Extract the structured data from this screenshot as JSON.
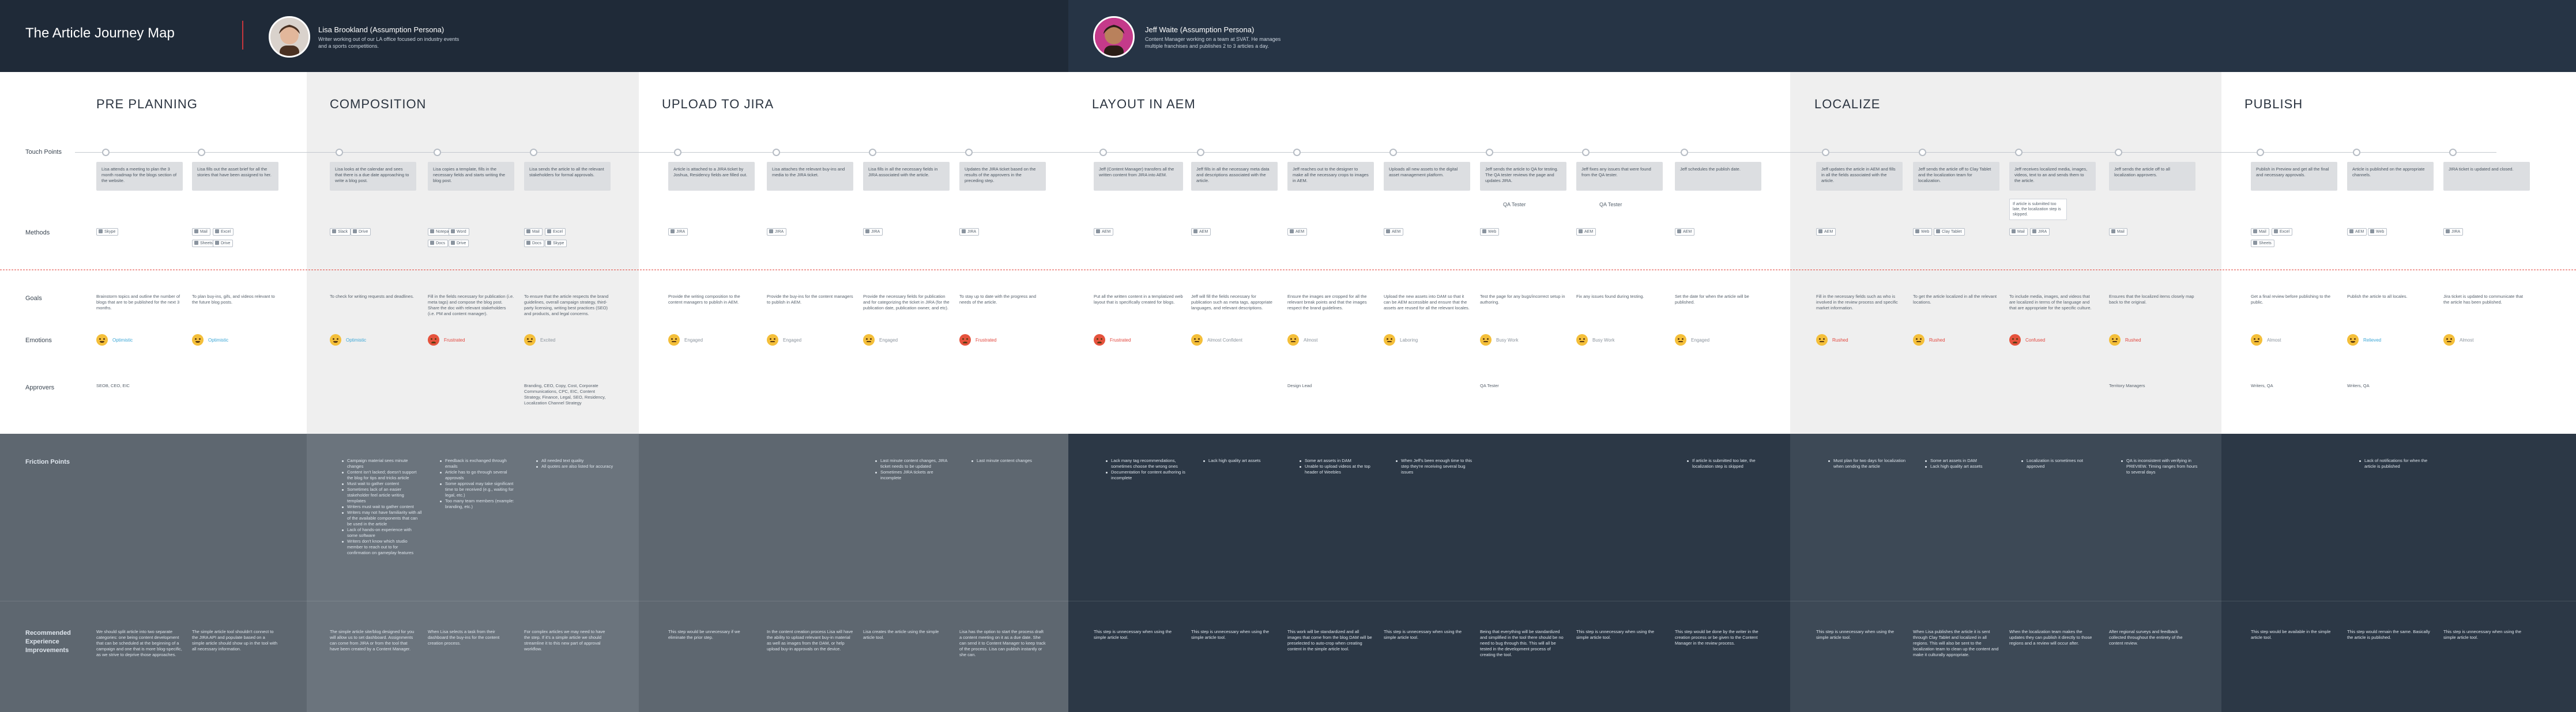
{
  "header": {
    "title": "The Article Journey Map",
    "personas": [
      {
        "name": "Lisa Brookland (Assumption Persona)",
        "desc_line1": "Writer working out of our LA office focused on industry events",
        "desc_line2": "and a sports competitions."
      },
      {
        "name": "Jeff Waite (Assumption Persona)",
        "desc_line1": "Content Manager working on a team at SVAT. He manages",
        "desc_line2": "multiple franchises and publishes 2 to 3 articles a day."
      }
    ]
  },
  "row_labels": {
    "touch_points": "Touch Points",
    "methods": "Methods",
    "goals": "Goals",
    "emotions": "Emotions",
    "approvers": "Approvers",
    "friction": "Friction Points",
    "rec_line1": "Recommended",
    "rec_line2": "Experience",
    "rec_line3": "Improvements"
  },
  "colors": {
    "header_dark": "#1f2a38",
    "shade_light": "#efefef",
    "friction_dark": "#5e6770",
    "accent_red": "#c8373d",
    "emotion_yellow": "#f4bf3a",
    "emotion_red": "#e5533d",
    "positive_text": "#3aa6d6",
    "negative_text": "#e2453c"
  },
  "phases": [
    {
      "title": "PRE PLANNING"
    },
    {
      "title": "COMPOSITION"
    },
    {
      "title": "UPLOAD TO JIRA"
    },
    {
      "title": "LAYOUT IN AEM"
    },
    {
      "title": "LOCALIZE"
    },
    {
      "title": "PUBLISH"
    }
  ],
  "steps": [
    {
      "touch": "Lisa attends a meeting to plan the 3 month roadmap for the blogs section of the website.",
      "methods": [
        "Skype"
      ],
      "goal": "Brainstorm topics and outline the number of blogs that are to be published for the next 3 months.",
      "emotion": {
        "icon": "happy",
        "label": "Optimistic"
      },
      "approver": "SEOB, CEO, EIC"
    },
    {
      "touch": "Lisa fills out the asset brief for all the stories that have been assigned to her.",
      "methods": [
        "Mail",
        "Excel",
        "Sheets",
        "Drive"
      ],
      "goal": "To plan buy-ins, gifs, and videos relevant to the future blog posts.",
      "emotion": {
        "icon": "happy",
        "label": "Optimistic"
      },
      "approver": ""
    },
    {
      "touch": "Lisa looks at the calendar and sees that there is a due date approaching to write a blog post.",
      "methods": [
        "Slack",
        "Drive"
      ],
      "goal": "To check for writing requests and deadlines.",
      "emotion": {
        "icon": "happy",
        "label": "Optimistic"
      },
      "approver": ""
    },
    {
      "touch": "Lisa copies a template, fills in the necessary fields and starts writing the blog post.",
      "methods": [
        "Notepad",
        "Word",
        "Docs",
        "Drive"
      ],
      "goal": "Fill in the fields necessary for publication (i.e. meta tags) and compose the blog post. Share the doc with relevant stakeholders (i.e. PM and content manager).",
      "emotion": {
        "icon": "red",
        "label": "Frustrated"
      },
      "approver": ""
    },
    {
      "touch": "Lisa sends the article to all the relevant stakeholders for formal approvals.",
      "methods": [
        "Mail",
        "Excel",
        "Docs",
        "Skype"
      ],
      "goal": "To ensure that the article respects the brand guidelines, overall campaign strategy, third-party licensing, writing best practices (SEO) and products, and legal concerns.",
      "emotion": {
        "icon": "neutral",
        "label": "Excited"
      },
      "approver": "Branding, CEO, Copy, Cost, Corporate Communications, CPC, EIC, Content Strategy, Finance, Legal, SEO, Residency, Localization Channel Strategy"
    },
    {
      "touch": "Article is attached to a JIRA ticket by Joshua, Residency fields are filled out.",
      "methods": [
        "JIRA"
      ],
      "goal": "Provide the writing composition to the content managers to publish in AEM.",
      "emotion": {
        "icon": "neutral",
        "label": "Engaged"
      },
      "approver": ""
    },
    {
      "touch": "Lisa attaches the relevant buy-ins and media to the JIRA ticket.",
      "methods": [
        "JIRA"
      ],
      "goal": "Provide the buy-ins for the content managers to publish in AEM.",
      "emotion": {
        "icon": "neutral",
        "label": "Engaged"
      },
      "approver": ""
    },
    {
      "touch": "Lisa fills in all the necessary fields in JIRA associated with the article.",
      "methods": [
        "JIRA"
      ],
      "goal": "Provide the necessary fields for publication and for categorizing the ticket in JIRA (for the publication date, publication owner, and etc).",
      "emotion": {
        "icon": "neutral",
        "label": "Engaged"
      },
      "approver": ""
    },
    {
      "touch": "Updates the JIRA ticket based on the results of the approvers in the preceding step.",
      "methods": [
        "JIRA"
      ],
      "goal": "To stay up to date with the progress and needs of the article.",
      "emotion": {
        "icon": "red",
        "label": "Frustrated"
      },
      "approver": ""
    },
    {
      "touch": "Jeff (Content Manager) transfers all the written content from JIRA into AEM.",
      "methods": [
        "AEM"
      ],
      "goal": "Put all the written content in a templatized web layout that is specifically created for blogs.",
      "emotion": {
        "icon": "red",
        "label": "Frustrated"
      },
      "approver": ""
    },
    {
      "touch": "Jeff fills in all the necessary meta data and descriptions associated with the article.",
      "methods": [
        "AEM"
      ],
      "goal": "Jeff will fill the fields necessary for publication such as meta tags, appropriate languages, and relevant descriptions.",
      "emotion": {
        "icon": "neutral",
        "label": "Almost Confident"
      },
      "approver": ""
    },
    {
      "touch": "Jeff reaches out to the designer to make all the necessary crops to images in AEM.",
      "methods": [
        "AEM"
      ],
      "goal": "Ensure the images are cropped for all the relevant break points and that the images respect the brand guidelines.",
      "emotion": {
        "icon": "neutral",
        "label": "Almost"
      },
      "approver": "Design Lead"
    },
    {
      "touch": "Uploads all new assets to the digital asset management platform.",
      "methods": [
        "AEM"
      ],
      "goal": "Upload the new assets into DAM so that it can be AEM accessible and ensure that the assets are reused for all the relevant locales.",
      "emotion": {
        "icon": "neutral",
        "label": "Laboring"
      },
      "approver": ""
    },
    {
      "touch": "Jeff sends the article to QA for testing. The QA tester reviews the page and updates JIRA.",
      "methods": [
        "Web"
      ],
      "tag": "QA Tester",
      "goal": "Test the page for any bugs/incorrect setup in authoring.",
      "emotion": {
        "icon": "neutral",
        "label": "Busy Work"
      },
      "approver": "QA Tester"
    },
    {
      "touch": "Jeff fixes any issues that were found from the QA tester.",
      "methods": [
        "AEM"
      ],
      "tag": "QA Tester",
      "goal": "Fix any issues found during testing.",
      "emotion": {
        "icon": "neutral",
        "label": "Busy Work"
      },
      "approver": ""
    },
    {
      "touch": "Jeff schedules the publish date.",
      "methods": [
        "AEM"
      ],
      "goal": "Set the date for when the article will be published.",
      "emotion": {
        "icon": "neutral",
        "label": "Engaged"
      },
      "approver": ""
    },
    {
      "touch": "Jeff updates the article in AEM and fills in all the fields associated with the article.",
      "methods": [
        "AEM"
      ],
      "goal": "Fill in the necessary fields such as who is involved in the review process and specific market information.",
      "emotion": {
        "icon": "neutral",
        "label": "Rushed"
      },
      "approver": ""
    },
    {
      "touch": "Jeff sends the article off to Clay Tablet and the localization team for localization.",
      "methods": [
        "Web",
        "Clay Tablet"
      ],
      "goal": "To get the article localized in all the relevant locations.",
      "emotion": {
        "icon": "neutral",
        "label": "Rushed"
      },
      "approver": ""
    },
    {
      "touch": "Jeff receives localized media, images, videos, text to an and sends them to the article.",
      "methods": [
        "Mail",
        "JIRA"
      ],
      "note": "If article is submitted too late, the localization step is skipped.",
      "goal": "To include media, images, and videos that are localized in terms of the language and that are appropriate for the specific culture.",
      "emotion": {
        "icon": "red",
        "label": "Confused"
      },
      "approver": ""
    },
    {
      "touch": "Jeff sends the article off to all localization approvers.",
      "methods": [
        "Mail"
      ],
      "goal": "Ensures that the localized items closely map back to the original.",
      "emotion": {
        "icon": "neutral",
        "label": "Rushed"
      },
      "approver": "Territory Managers"
    },
    {
      "touch": "Publish in Preview and get all the final and necessary approvals.",
      "methods": [
        "Mail",
        "Excel",
        "Sheets"
      ],
      "goal": "Get a final review before publishing to the public.",
      "emotion": {
        "icon": "neutral",
        "label": "Almost"
      },
      "approver": "Writers, QA"
    },
    {
      "touch": "Article is published on the appropriate channels.",
      "methods": [
        "AEM",
        "Web"
      ],
      "goal": "Publish the article to all locales.",
      "emotion": {
        "icon": "happy",
        "label": "Relieved"
      },
      "approver": "Writers, QA"
    },
    {
      "touch": "JIRA ticket is updated and closed.",
      "methods": [
        "JIRA"
      ],
      "goal": "Jira ticket is updated to communicate that the article has been published.",
      "emotion": {
        "icon": "neutral",
        "label": "Almost"
      },
      "approver": ""
    }
  ],
  "friction": [
    [],
    [],
    [],
    [
      "Campaign material sees minute changes",
      "Content isn't lacked; doesn't support the blog for tips and tricks article",
      "Must wait to gather content",
      "Sometimes lack of an easier stakeholder feel article writing templates",
      "Writers must wait to gather content",
      "Writers may not have familiarity with all of the available components that can be used in the article",
      "Lack of hands-on experience with some software",
      "Writers don't know which studio member to reach out to for confirmation on gameplay features"
    ],
    [
      "Feedback is exchanged through emails",
      "Article has to go through several approvals",
      "Some approval may take significant time to be received (e.g., waiting for legal, etc.)",
      "Too many team members (example: branding, etc.)"
    ],
    [
      "All needed text quality",
      "All quotes are also listed for accuracy"
    ],
    [],
    [],
    [
      "Last minute content changes, JIRA ticket needs to be updated",
      "Sometimes JIRA tickets are incomplete"
    ],
    [
      "Last minute content changes"
    ],
    [
      "Lack many tag recommendations, sometimes choose the wrong ones",
      "Documentation for content authoring is incomplete"
    ],
    [
      "Lack high quality art assets"
    ],
    [
      "Some art assets in DAM",
      "Unable to upload videos at the top header of Weebles"
    ],
    [
      "When Jeff's been enough time to this step they're receiving several bug issues"
    ],
    [],
    [],
    [
      "If article is submitted too late, the localization step is skipped"
    ],
    [
      "Must plan for two days for localization when sending the article"
    ],
    [
      "Some art assets in DAM",
      "Lack high quality art assets"
    ],
    [
      "Localization is sometimes not approved"
    ],
    [
      "QA is inconsistent with verifying in PREVIEW. Timing ranges from hours to several days"
    ],
    [],
    [
      "Lack of notifications for when the article is published"
    ]
  ],
  "recommendations": [
    "We should split article into two separate categories: one being content development that can be scheduled at the beginning of a campaign and one that is more blog-specific, as we strive to deprive those approaches.",
    "The simple article tool shouldn't connect to the JIRA API and populate based on a simple article should show up in the tool with all necessary information.",
    "The simple article site/blog designed for you will allow us to set dashboard. Assignments can come from JIRA or from the tool that have been created by a Content Manager.",
    "When Lisa selects a task from their dashboard the buy-ins for the content creation process.",
    "For complex articles we may need to have the step. If it's a simple article we should streamline it to this new part of approval workflow.",
    "This step would be unnecessary if we eliminate the prior step.",
    "In the content creation process Lisa will have the ability to upload relevant buy-in material as well as images from the DAM, or help upload buy-in approvals on the device.",
    "Lisa creates the article using the simple article tool.",
    "Lisa has the option to start the process draft a content meeting on it as a due date. She can send it to Content Manager to keep track of the process. Lisa can publish instantly or she can.",
    "This step is unnecessary when using the simple article tool.",
    "This step is unnecessary when using the simple article tool.",
    "This work will be standardized and all images that come from the blog DAM will be preselected to auto-crop when creating content in the simple article tool.",
    "This step is unnecessary when using the simple article tool.",
    "Being that everything will be standardized and simplified in the tool there should be no need to bug through this. This will all be tested in the development process of creating the tool.",
    "This step is unnecessary when using the simple article tool.",
    "This step would be done by the writer in the creation process or be given to the Content Manager in the review process.",
    "This step is unnecessary when using the simple article tool.",
    "When Lisa publishes the article it is sent through Clay Tablet and localized in all regions. This will also be sent to the localization team to clean up the content and make it culturally appropriate.",
    "When the localization team makes the updates they can publish it directly to those regions and a review will occur after.",
    "After regional surveys and feedback collected throughout the entirety of the content review.",
    "This step would be available in the simple article tool.",
    "This step would remain the same. Basically the article is published.",
    "This step is unnecessary when using the simple article tool."
  ]
}
